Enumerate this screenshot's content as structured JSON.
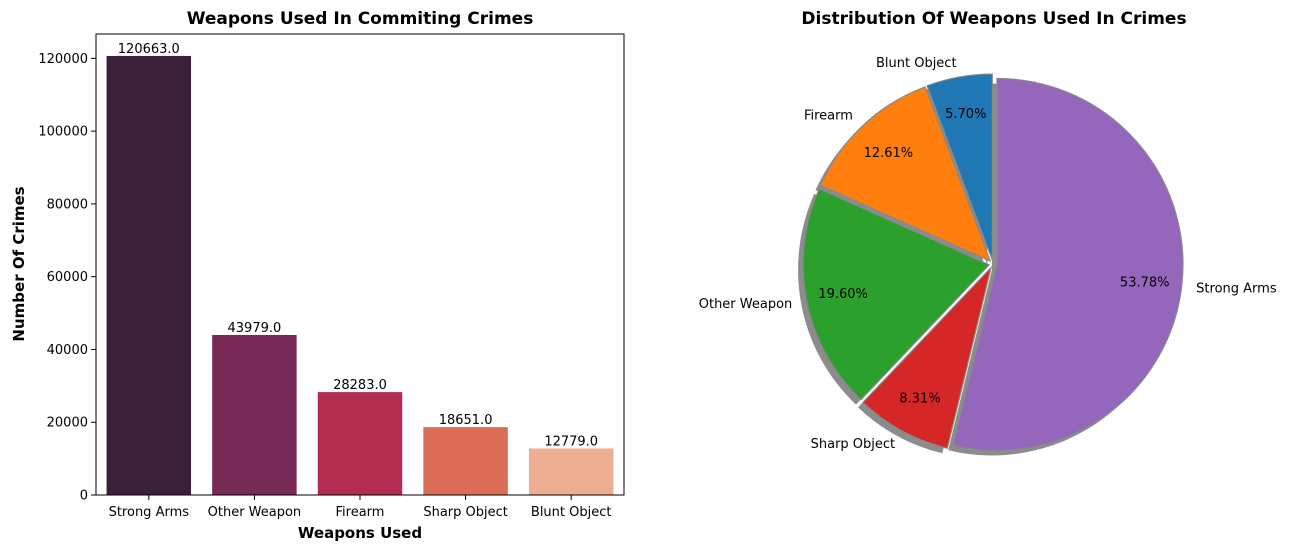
{
  "chart_data": [
    {
      "type": "bar",
      "title": "Weapons Used In Commiting Crimes",
      "xlabel": "Weapons Used",
      "ylabel": "Number Of Crimes",
      "categories": [
        "Strong Arms",
        "Other Weapon",
        "Firearm",
        "Sharp Object",
        "Blunt Object"
      ],
      "values": [
        120663,
        43979,
        28283,
        18651,
        12779
      ],
      "data_labels": [
        "120663.0",
        "43979.0",
        "28283.0",
        "18651.0",
        "12779.0"
      ],
      "ylim": [
        0,
        126696
      ],
      "yticks": [
        0,
        20000,
        40000,
        60000,
        80000,
        100000,
        120000
      ],
      "colors": [
        "#3b2039",
        "#772a55",
        "#b22e51",
        "#dc6e58",
        "#ebae90"
      ],
      "grid": false,
      "legend": "none"
    },
    {
      "type": "pie",
      "title": "Distribution Of Weapons Used In Crimes",
      "start_angle_deg": 90,
      "direction": "counterclockwise",
      "shadow": true,
      "slices": [
        {
          "label": "Blunt Object",
          "value": 5.7,
          "pct_label": "5.70%",
          "color": "#1f77b4"
        },
        {
          "label": "Firearm",
          "value": 12.61,
          "pct_label": "12.61%",
          "color": "#ff7f0e"
        },
        {
          "label": "Other Weapon",
          "value": 19.6,
          "pct_label": "19.60%",
          "color": "#2ca02c"
        },
        {
          "label": "Sharp Object",
          "value": 8.31,
          "pct_label": "8.31%",
          "color": "#d62728"
        },
        {
          "label": "Strong Arms",
          "value": 53.78,
          "pct_label": "53.78%",
          "color": "#9467bd"
        }
      ]
    }
  ]
}
